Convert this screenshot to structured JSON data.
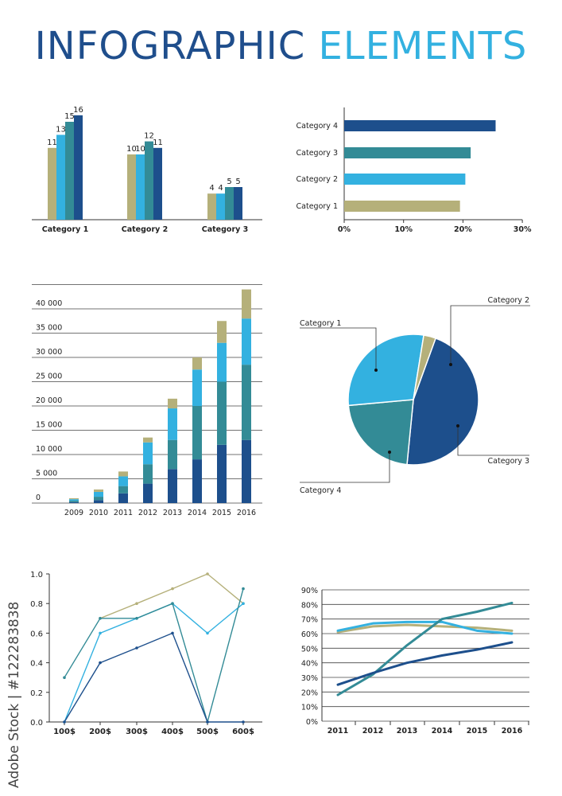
{
  "header": {
    "title_part1": "INFOGRAPHIC",
    "title_part2": "ELEMENTS"
  },
  "watermark": "Adobe Stock | #122283838",
  "colors": {
    "khaki": "#b5b07a",
    "sky": "#33b1e0",
    "teal": "#338b96",
    "navy": "#1d4f8c"
  },
  "chart_data": [
    {
      "type": "bar",
      "categories": [
        "Category 1",
        "Category 2",
        "Category 3"
      ],
      "series": [
        {
          "values": [
            11,
            10,
            4
          ],
          "color": "#b5b07a"
        },
        {
          "values": [
            13,
            10,
            4
          ],
          "color": "#33b1e0"
        },
        {
          "values": [
            15,
            12,
            5
          ],
          "color": "#338b96"
        },
        {
          "values": [
            16,
            11,
            5
          ],
          "color": "#1d4f8c"
        }
      ],
      "ylim": [
        0,
        16
      ]
    },
    {
      "type": "bar",
      "orientation": "horizontal",
      "categories": [
        "Category 4",
        "Category 3",
        "Category 2",
        "Category 1"
      ],
      "values": [
        25.5,
        21.3,
        20.4,
        19.5
      ],
      "colors": [
        "#1d4f8c",
        "#338b96",
        "#33b1e0",
        "#b5b07a"
      ],
      "xticks": [
        "0%",
        "10%",
        "20%",
        "30%"
      ],
      "xlim": [
        0,
        30
      ]
    },
    {
      "type": "bar",
      "stacked": true,
      "categories": [
        "2009",
        "2010",
        "2011",
        "2012",
        "2013",
        "2014",
        "2015",
        "2016"
      ],
      "series": [
        {
          "color": "#1d4f8c",
          "values": [
            200,
            600,
            2000,
            4000,
            7000,
            9000,
            12000,
            13000
          ]
        },
        {
          "color": "#338b96",
          "values": [
            300,
            700,
            1500,
            4000,
            6000,
            11000,
            13000,
            15500
          ]
        },
        {
          "color": "#33b1e0",
          "values": [
            300,
            1000,
            2000,
            4500,
            6500,
            7500,
            8000,
            9500
          ]
        },
        {
          "color": "#b5b07a",
          "values": [
            200,
            500,
            1000,
            1000,
            2000,
            2500,
            4500,
            6000
          ]
        }
      ],
      "yticks": [
        "0",
        "5 000",
        "10 000",
        "15 000",
        "20 000",
        "25 000",
        "30 000",
        "35 000",
        "40 000"
      ],
      "ylim": [
        0,
        45000
      ],
      "grid": true
    },
    {
      "type": "pie",
      "slices": [
        {
          "label": "Category 1",
          "value": 46,
          "color": "#1d4f8c"
        },
        {
          "label": "Category 2",
          "value": 22,
          "color": "#338b96"
        },
        {
          "label": "Category 3",
          "value": 29,
          "color": "#33b1e0"
        },
        {
          "label": "Category 4",
          "value": 3,
          "color": "#b5b07a"
        }
      ]
    },
    {
      "type": "line",
      "x": [
        "100$",
        "200$",
        "300$",
        "400$",
        "500$",
        "600$"
      ],
      "yticks": [
        "0.0",
        "0.2",
        "0.4",
        "0.6",
        "0.8",
        "1.0"
      ],
      "ylim": [
        0,
        1
      ],
      "series": [
        {
          "color": "#b5b07a",
          "values": [
            null,
            0.7,
            0.8,
            0.9,
            1.0,
            0.8
          ]
        },
        {
          "color": "#33b1e0",
          "values": [
            0.0,
            0.6,
            0.7,
            0.8,
            0.6,
            0.8
          ]
        },
        {
          "color": "#338b96",
          "values": [
            0.3,
            0.7,
            0.7,
            0.8,
            0.0,
            0.9
          ]
        },
        {
          "color": "#1d4f8c",
          "values": [
            0.0,
            0.4,
            0.5,
            0.6,
            0.0,
            0.0
          ]
        }
      ]
    },
    {
      "type": "line",
      "x": [
        "2011",
        "2012",
        "2013",
        "2014",
        "2015",
        "2016"
      ],
      "yticks": [
        "0%",
        "10%",
        "20%",
        "30%",
        "40%",
        "50%",
        "60%",
        "70%",
        "80%",
        "90%"
      ],
      "ylim": [
        0,
        90
      ],
      "grid": true,
      "series": [
        {
          "color": "#b5b07a",
          "values": [
            61,
            65,
            66,
            65,
            64,
            62
          ]
        },
        {
          "color": "#33b1e0",
          "values": [
            62,
            67,
            68,
            68,
            62,
            60
          ]
        },
        {
          "color": "#338b96",
          "values": [
            18,
            32,
            52,
            70,
            75,
            81
          ]
        },
        {
          "color": "#1d4f8c",
          "values": [
            25,
            33,
            40,
            45,
            49,
            54
          ]
        }
      ]
    }
  ]
}
